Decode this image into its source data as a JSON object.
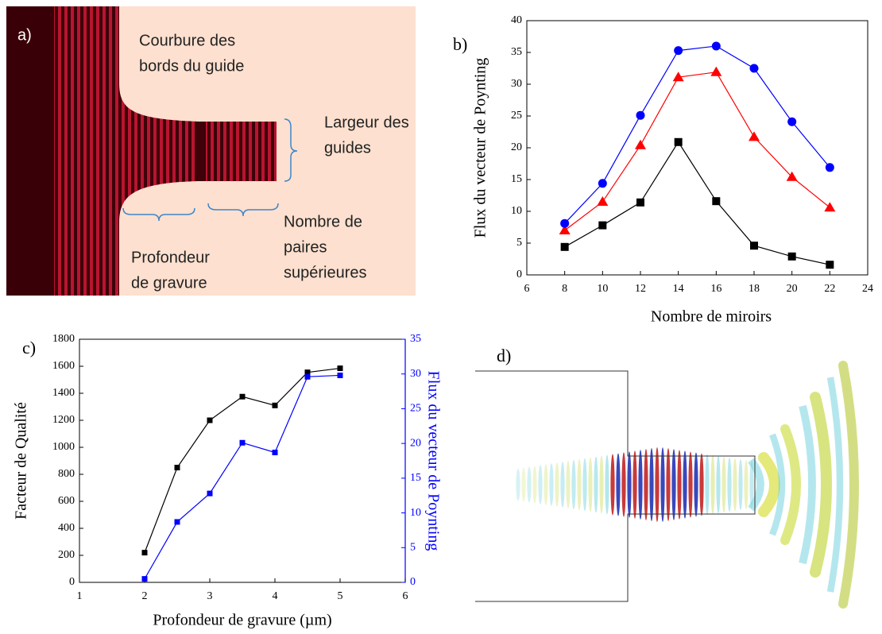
{
  "panel_a": {
    "label": "a)",
    "annotations": [
      [
        "Courbure des",
        "bords du guide"
      ],
      [
        "Largeur des",
        "guides"
      ],
      [
        "Nombre de",
        "paires",
        "supérieures"
      ],
      [
        "Profondeur",
        "de gravure"
      ]
    ]
  },
  "panel_d": {
    "label": "d)"
  },
  "chart_data": [
    {
      "type": "line",
      "label": "b)",
      "x_label": "Nombre de miroirs",
      "y_label": "Flux du vecteur de Poynting",
      "x": [
        8,
        10,
        12,
        14,
        16,
        18,
        20,
        22
      ],
      "series": [
        {
          "color": "#000000",
          "marker": "square",
          "values": [
            4.4,
            7.8,
            11.4,
            20.9,
            11.6,
            4.6,
            2.9,
            1.6
          ]
        },
        {
          "color": "#ff0000",
          "marker": "triangle",
          "values": [
            7.0,
            11.5,
            20.4,
            31.1,
            31.9,
            21.7,
            15.4,
            10.6
          ]
        },
        {
          "color": "#0000ff",
          "marker": "circle",
          "values": [
            8.1,
            14.4,
            25.1,
            35.3,
            36.0,
            32.5,
            24.1,
            16.9
          ]
        }
      ],
      "xlim": [
        6,
        24
      ],
      "xticks": [
        6,
        8,
        10,
        12,
        14,
        16,
        18,
        20,
        22,
        24
      ],
      "ylim": [
        0,
        40
      ],
      "yticks": [
        0,
        5,
        10,
        15,
        20,
        25,
        30,
        35,
        40
      ]
    },
    {
      "type": "line",
      "label": "c)",
      "x_label": "Profondeur de gravure (µm)",
      "y_label": "Facteur de Qualité",
      "y2_label": "Flux du vecteur de Poynting",
      "x": [
        2,
        2.5,
        3,
        3.5,
        4,
        4.5,
        5
      ],
      "series": [
        {
          "color": "#000000",
          "marker": "square",
          "values": [
            220,
            850,
            1200,
            1375,
            1310,
            1555,
            1585
          ]
        },
        {
          "color": "#0000ff",
          "marker": "square",
          "axis": "y2",
          "values": [
            0.5,
            8.7,
            12.8,
            20.1,
            18.7,
            29.6,
            29.8
          ]
        }
      ],
      "xlim": [
        1,
        6
      ],
      "xticks": [
        1,
        2,
        3,
        4,
        5,
        6
      ],
      "ylim": [
        0,
        1800
      ],
      "yticks": [
        0,
        200,
        400,
        600,
        800,
        1000,
        1200,
        1400,
        1600,
        1800
      ],
      "y2lim": [
        0,
        35
      ],
      "y2ticks": [
        0,
        5,
        10,
        15,
        20,
        25,
        30,
        35
      ]
    }
  ]
}
